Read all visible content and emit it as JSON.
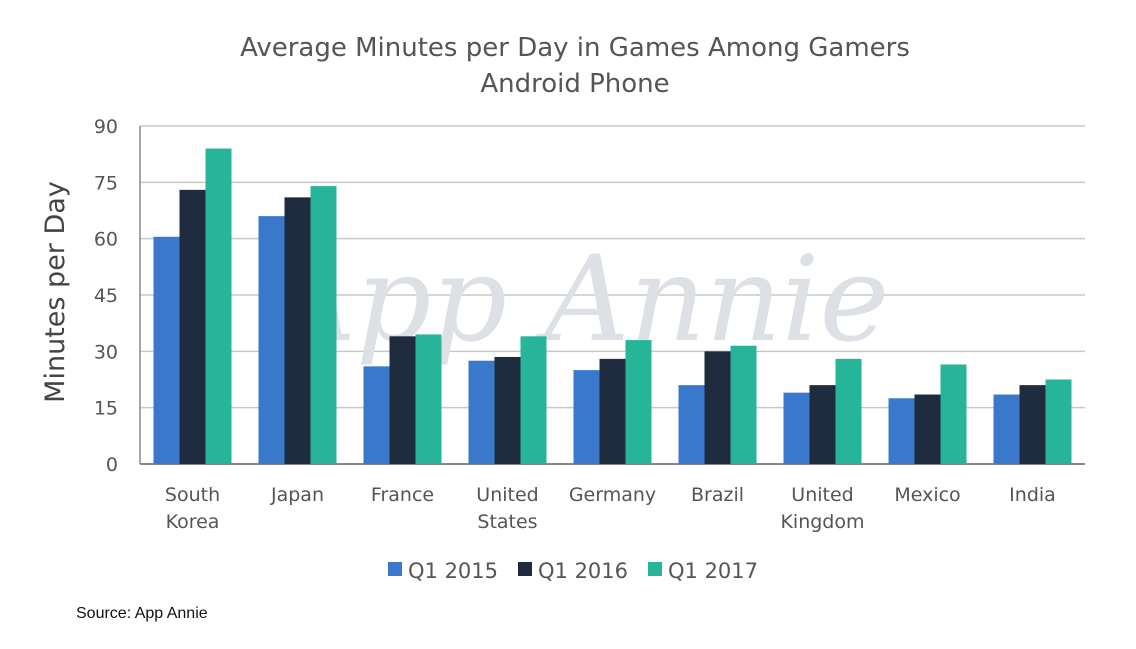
{
  "watermark": "App Annie",
  "source": "Source: App Annie",
  "colors": {
    "Q1 2015": "#3a78cc",
    "Q1 2016": "#1f2b3e",
    "Q1 2017": "#27b59a",
    "grid": "#c8c8c8",
    "axis": "#888888"
  },
  "chart_data": {
    "type": "bar",
    "title": "Average Minutes per Day in Games Among Gamers",
    "subtitle": "Android Phone",
    "xlabel": "",
    "ylabel": "Minutes per Day",
    "ylim": [
      0,
      90
    ],
    "yticks": [
      0,
      15,
      30,
      45,
      60,
      75,
      90
    ],
    "grid": true,
    "legend": "bottom",
    "categories": [
      [
        "South",
        "Korea"
      ],
      [
        "Japan"
      ],
      [
        "France"
      ],
      [
        "United",
        "States"
      ],
      [
        "Germany"
      ],
      [
        "Brazil"
      ],
      [
        "United",
        "Kingdom"
      ],
      [
        "Mexico"
      ],
      [
        "India"
      ]
    ],
    "series": [
      {
        "name": "Q1 2015",
        "values": [
          60.5,
          66,
          26,
          27.5,
          25,
          21,
          19,
          17.5,
          18.5
        ]
      },
      {
        "name": "Q1 2016",
        "values": [
          73,
          71,
          34,
          28.5,
          28,
          30,
          21,
          18.5,
          21
        ]
      },
      {
        "name": "Q1 2017",
        "values": [
          84,
          74,
          34.5,
          34,
          33,
          31.5,
          28,
          26.5,
          22.5
        ]
      }
    ]
  }
}
